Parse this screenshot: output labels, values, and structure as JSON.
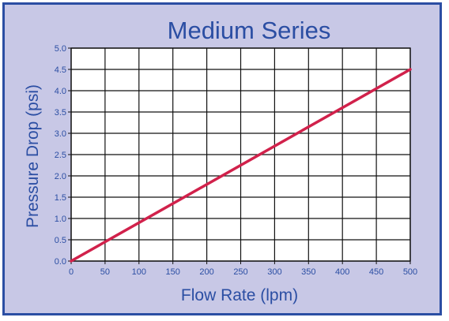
{
  "chart_data": {
    "type": "line",
    "title": "Medium Series",
    "xlabel": "Flow Rate (lpm)",
    "ylabel": "Pressure Drop (psi)",
    "xlim": [
      0,
      500
    ],
    "ylim": [
      0,
      5.0
    ],
    "x_ticks": [
      "0",
      "50",
      "100",
      "150",
      "200",
      "250",
      "300",
      "350",
      "400",
      "450",
      "500"
    ],
    "y_ticks": [
      "0.0",
      "0.5",
      "1.0",
      "1.5",
      "2.0",
      "2.5",
      "3.0",
      "3.5",
      "4.0",
      "4.5",
      "5.0"
    ],
    "grid": true,
    "series": [
      {
        "x": [
          0,
          500
        ],
        "y": [
          0.0,
          4.5
        ],
        "color": "#d1214b"
      }
    ],
    "colors": {
      "frame_border": "#2b4ea3",
      "frame_background": "#c8c8e6",
      "text": "#2b4ea3",
      "plot_background": "#ffffff",
      "grid": "#111111",
      "line": "#d1214b"
    }
  }
}
